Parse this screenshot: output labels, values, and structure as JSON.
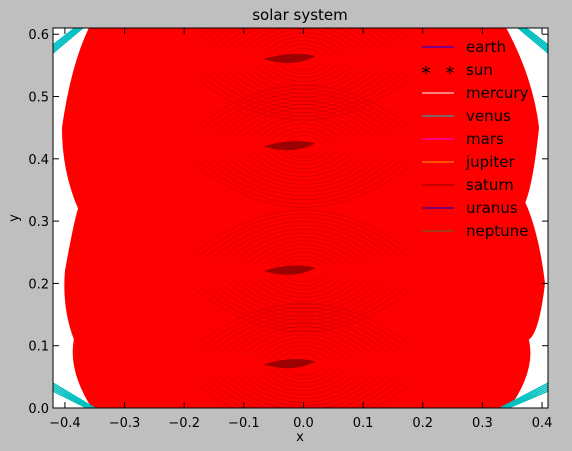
{
  "chart_data": {
    "type": "line",
    "title": "solar system",
    "xlabel": "x",
    "ylabel": "y",
    "xlim": [
      -0.42,
      0.41
    ],
    "ylim": [
      0.0,
      0.61
    ],
    "xticks": [
      -0.4,
      -0.3,
      -0.2,
      -0.1,
      0.0,
      0.1,
      0.2,
      0.3,
      0.4
    ],
    "xtick_labels": [
      "−0.4",
      "−0.3",
      "−0.2",
      "−0.1",
      "0.0",
      "0.1",
      "0.2",
      "0.3",
      "0.4"
    ],
    "yticks": [
      0.0,
      0.1,
      0.2,
      0.3,
      0.4,
      0.5,
      0.6
    ],
    "ytick_labels": [
      "0.0",
      "0.1",
      "0.2",
      "0.3",
      "0.4",
      "0.5",
      "0.6"
    ],
    "legend_position": "top-right",
    "series": [
      {
        "name": "earth",
        "color": "#0000ff",
        "marker": "line"
      },
      {
        "name": "sun",
        "color": "#000000",
        "marker": "*"
      },
      {
        "name": "mercury",
        "color": "#ffffff",
        "marker": "line"
      },
      {
        "name": "venus",
        "color": "#00bfbf",
        "marker": "line"
      },
      {
        "name": "mars",
        "color": "#ff00ff",
        "marker": "line"
      },
      {
        "name": "jupiter",
        "color": "#ffa500",
        "marker": "line"
      },
      {
        "name": "saturn",
        "color": "#8b0000",
        "marker": "line"
      },
      {
        "name": "uranus",
        "color": "#0000cd",
        "marker": "line"
      },
      {
        "name": "neptune",
        "color": "#556b2f",
        "marker": "line"
      }
    ],
    "fill_color": "#ff0000",
    "dense_line_color": "#8b0000",
    "center_knot_y": [
      0.56,
      0.42,
      0.22,
      0.07
    ]
  }
}
